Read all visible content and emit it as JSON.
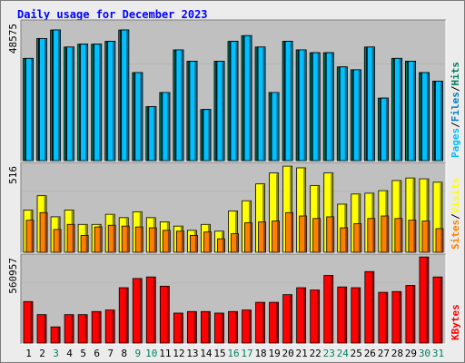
{
  "chart_data": {
    "type": "bar",
    "title": "Daily usage for December 2023",
    "categories": [
      "1",
      "2",
      "3",
      "4",
      "5",
      "6",
      "7",
      "8",
      "9",
      "10",
      "11",
      "12",
      "13",
      "14",
      "15",
      "16",
      "17",
      "18",
      "19",
      "20",
      "21",
      "22",
      "23",
      "24",
      "25",
      "26",
      "27",
      "28",
      "29",
      "30",
      "31"
    ],
    "weekend_days": [
      "3",
      "9",
      "10",
      "16",
      "17",
      "23",
      "24",
      "30",
      "31"
    ],
    "panels": [
      {
        "name": "top",
        "ymax_label": "48575",
        "ylim": [
          0,
          48575
        ],
        "series": [
          {
            "name": "Hits",
            "color": "#00805f",
            "values": [
              36000,
              43000,
              46000,
              40000,
              41000,
              41000,
              42000,
              46000,
              31000,
              19000,
              24000,
              39000,
              35000,
              18000,
              35000,
              42000,
              44000,
              40000,
              24000,
              42000,
              39000,
              38000,
              38000,
              33000,
              32000,
              40000,
              22000,
              36000,
              35000,
              31000,
              28000
            ]
          },
          {
            "name": "Files",
            "color": "#0080c0",
            "values": [
              36000,
              43000,
              46000,
              40000,
              41000,
              41000,
              42000,
              46000,
              31000,
              19000,
              24000,
              39000,
              35000,
              18000,
              35000,
              42000,
              44000,
              40000,
              24000,
              42000,
              39000,
              38000,
              38000,
              33000,
              32000,
              40000,
              22000,
              36000,
              35000,
              31000,
              28000
            ]
          },
          {
            "name": "Pages",
            "color": "#00c0ff",
            "values": [
              36000,
              43000,
              46000,
              40000,
              41000,
              41000,
              42000,
              46000,
              31000,
              19000,
              24000,
              39000,
              35000,
              18000,
              35000,
              42000,
              44000,
              40000,
              24000,
              42000,
              39000,
              38000,
              38000,
              33000,
              32000,
              40000,
              22000,
              36000,
              35000,
              31000,
              28000
            ]
          }
        ],
        "labels": [
          "Pages",
          "/",
          "Files",
          "/",
          "Hits"
        ]
      },
      {
        "name": "middle",
        "ymax_label": "516",
        "ylim": [
          0,
          516
        ],
        "series": [
          {
            "name": "Visits",
            "color": "#ffff00",
            "values": [
              250,
              335,
              210,
              250,
              165,
              165,
              225,
              205,
              240,
              205,
              180,
              155,
              130,
              165,
              125,
              245,
              305,
              405,
              470,
              510,
              500,
              395,
              470,
              285,
              345,
              350,
              365,
              425,
              440,
              435,
              415
            ]
          },
          {
            "name": "Sites",
            "color": "#ff8000",
            "values": [
              190,
              235,
              135,
              165,
              100,
              150,
              160,
              155,
              150,
              145,
              130,
              125,
              100,
              120,
              80,
              110,
              175,
              180,
              185,
              235,
              215,
              200,
              210,
              145,
              170,
              200,
              215,
              200,
              190,
              185,
              140
            ]
          }
        ],
        "labels": [
          "Sites",
          "/",
          "Visits"
        ]
      },
      {
        "name": "bottom",
        "ymax_label": "560957",
        "ylim": [
          0,
          560957
        ],
        "series": [
          {
            "name": "KBytes",
            "color": "#ff0000",
            "values": [
              270000,
              185000,
              105000,
              185000,
              185000,
              205000,
              215000,
              360000,
              420000,
              430000,
              370000,
              195000,
              205000,
              205000,
              195000,
              205000,
              215000,
              265000,
              265000,
              315000,
              360000,
              345000,
              440000,
              365000,
              360000,
              465000,
              330000,
              335000,
              375000,
              560000,
              430000
            ]
          }
        ],
        "labels": [
          "KBytes"
        ]
      }
    ]
  },
  "colors": {
    "title": "#0000ff",
    "weekday_label": "#000000",
    "weekend_label": "#00805f",
    "panel_bg": "#c0c0c0",
    "page_bg": "#ececec"
  }
}
